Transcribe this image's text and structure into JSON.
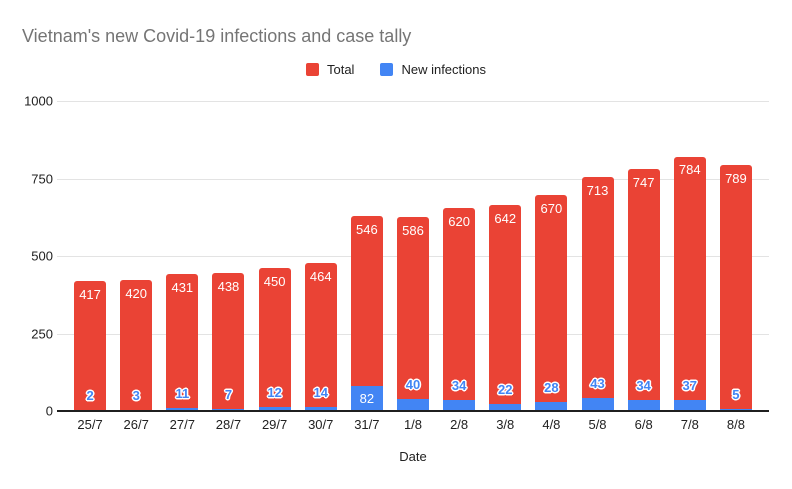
{
  "chart_data": {
    "type": "bar",
    "stacked": true,
    "title": "Vietnam's new Covid-19 infections and case tally",
    "xlabel": "Date",
    "ylabel": "",
    "ylim": [
      0,
      1000
    ],
    "yticks": [
      0,
      250,
      500,
      750,
      1000
    ],
    "grid": true,
    "legend_position": "top-center",
    "categories": [
      "25/7",
      "26/7",
      "27/7",
      "28/7",
      "29/7",
      "30/7",
      "31/7",
      "1/8",
      "2/8",
      "3/8",
      "4/8",
      "5/8",
      "6/8",
      "7/8",
      "8/8"
    ],
    "series": [
      {
        "name": "Total",
        "color": "#EA4335",
        "values": [
          417,
          420,
          431,
          438,
          450,
          464,
          546,
          586,
          620,
          642,
          670,
          713,
          747,
          784,
          789
        ]
      },
      {
        "name": "New infections",
        "color": "#4285F4",
        "values": [
          2,
          3,
          11,
          7,
          12,
          14,
          82,
          40,
          34,
          22,
          28,
          43,
          34,
          37,
          5
        ]
      }
    ]
  },
  "colors": {
    "title_text": "#757575",
    "axis_text": "#212121",
    "gridline": "#E3E3E3",
    "axis_line": "#1F1F1F",
    "background": "#FFFFFF",
    "total_label_text": "#FFFFFF",
    "new_label_text": "#4285F4"
  }
}
